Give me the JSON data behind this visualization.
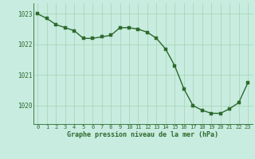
{
  "x": [
    0,
    1,
    2,
    3,
    4,
    5,
    6,
    7,
    8,
    9,
    10,
    11,
    12,
    13,
    14,
    15,
    16,
    17,
    18,
    19,
    20,
    21,
    22,
    23
  ],
  "y": [
    1023.0,
    1022.85,
    1022.65,
    1022.55,
    1022.45,
    1022.2,
    1022.2,
    1022.25,
    1022.3,
    1022.55,
    1022.55,
    1022.5,
    1022.4,
    1022.2,
    1021.85,
    1021.3,
    1020.55,
    1020.0,
    1019.85,
    1019.75,
    1019.75,
    1019.9,
    1020.1,
    1020.75
  ],
  "line_color": "#2d6a2d",
  "marker_color": "#2d6a2d",
  "bg_color": "#c8ece0",
  "grid_color": "#a8d8b8",
  "xlabel": "Graphe pression niveau de la mer (hPa)",
  "xlabel_color": "#2d6a2d",
  "tick_color": "#2d6a2d",
  "ylim_min": 1019.4,
  "ylim_max": 1023.35,
  "yticks": [
    1020,
    1021,
    1022,
    1023
  ],
  "xticks": [
    0,
    1,
    2,
    3,
    4,
    5,
    6,
    7,
    8,
    9,
    10,
    11,
    12,
    13,
    14,
    15,
    16,
    17,
    18,
    19,
    20,
    21,
    22,
    23
  ]
}
